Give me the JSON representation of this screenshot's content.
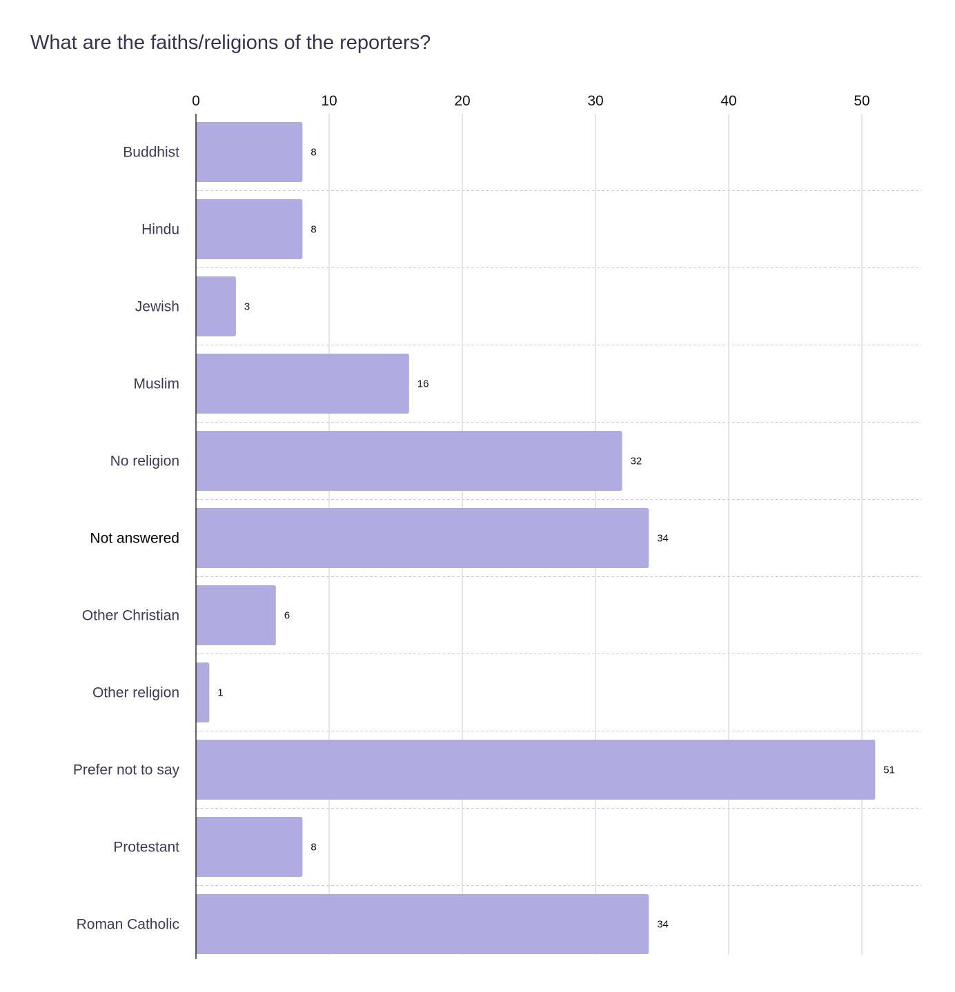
{
  "chart_data": {
    "type": "bar",
    "orientation": "horizontal",
    "title": "What are the faiths/religions of the reporters?",
    "categories": [
      "Buddhist",
      "Hindu",
      "Jewish",
      "Muslim",
      "No religion",
      "Not answered",
      "Other Christian",
      "Other religion",
      "Prefer not to say",
      "Protestant",
      "Roman Catholic"
    ],
    "values": [
      8,
      8,
      3,
      16,
      32,
      34,
      6,
      1,
      51,
      8,
      34
    ],
    "xlim": [
      0,
      55
    ],
    "xticks": [
      0,
      10,
      20,
      30,
      40,
      50
    ],
    "x_axis_position": "top",
    "grid": true,
    "highlighted_category": "Not answered",
    "bar_color": "#b0ace1",
    "gridline_color": "#d6d6d6",
    "title_color": "#35334f"
  }
}
